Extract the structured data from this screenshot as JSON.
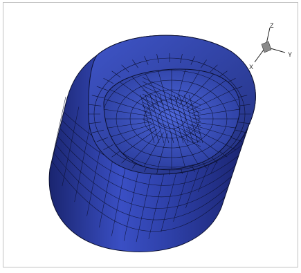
{
  "viewport": {
    "background": "#ffffff",
    "frame_color": "#bfbfbf"
  },
  "model": {
    "surface_color": "#2d3fa6",
    "surface_dark": "#1a2570",
    "surface_light": "#5b6fd6",
    "grid_color": "#0b1030"
  },
  "axis_triad": {
    "labels": {
      "x": "X",
      "y": "Y",
      "z": "Z"
    },
    "line_color": "#222222",
    "cube_color": "#8a8a8a"
  }
}
